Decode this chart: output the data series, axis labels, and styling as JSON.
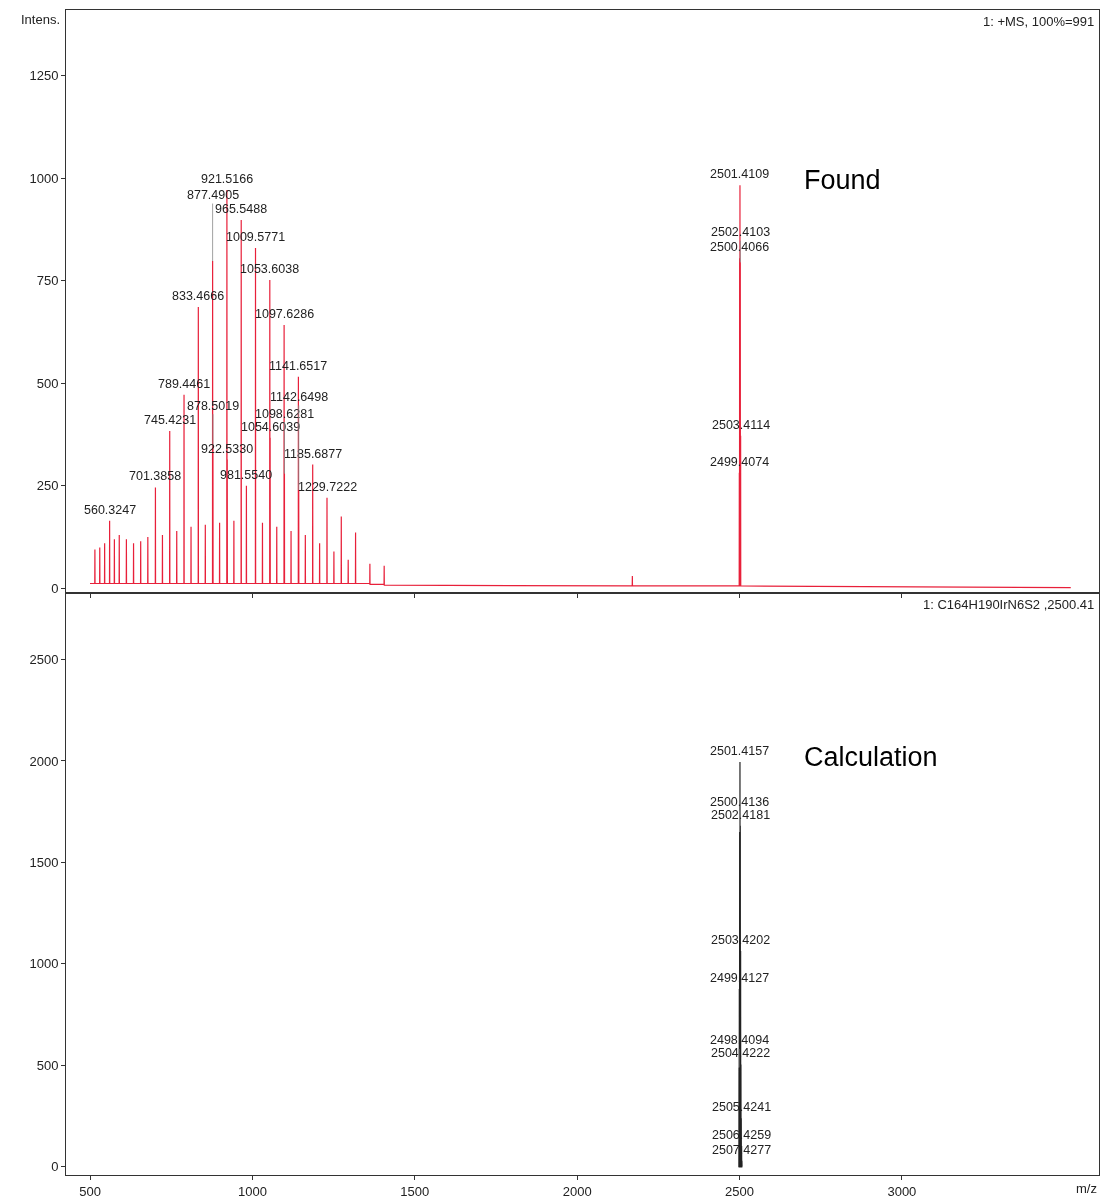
{
  "chart_data": [
    {
      "type": "line",
      "ylabel": "Intens.",
      "xlim": [
        426,
        3607
      ],
      "ylim": [
        -10,
        1410
      ],
      "xticks": [
        500,
        1000,
        1500,
        2000,
        2500,
        3000
      ],
      "yticks": [
        0,
        250,
        500,
        750,
        1000,
        1250
      ],
      "tick_labels": "y",
      "grid": false,
      "marker": "none",
      "series": [
        {
          "color": "#e8203a",
          "x": [
            500,
            514.6,
            515,
            515.4,
            529.6,
            530,
            530.4,
            544.6,
            545,
            545.4,
            559.9247,
            560.3247,
            560.7247,
            574.6,
            575,
            575.4,
            589.6,
            590,
            590.4,
            611.6,
            612,
            612.4,
            633.6,
            634,
            634.4,
            655.6,
            656,
            656.4,
            677.6,
            678,
            678.4,
            700.9858,
            701.3858,
            701.7858,
            722.6,
            723,
            723.4,
            745.0231,
            745.4231,
            745.8231,
            766.6,
            767,
            767.4,
            789.0461,
            789.4461,
            789.8461,
            810.6,
            811,
            811.4,
            833.0666,
            833.4666,
            833.8666,
            854.6,
            855,
            855.4,
            877.0905,
            877.4905,
            877.8905,
            878.1019,
            878.5019,
            878.9019,
            898.6,
            899,
            899.4,
            921.1166,
            921.5166,
            921.9166,
            922.133,
            922.533,
            922.933,
            942.6,
            943,
            943.4,
            965.1488,
            965.5488,
            965.9488,
            981.154,
            981.554,
            981.954,
            1009.1771,
            1009.5771,
            1009.9771,
            1030.6,
            1031,
            1031.4,
            1053.2038,
            1053.6038,
            1054.0038,
            1054.2039,
            1054.6039,
            1055.0039,
            1074.6,
            1075,
            1075.4,
            1097.2286,
            1097.6286,
            1098.0286,
            1098.2281,
            1098.6281,
            1099.0281,
            1118.6,
            1119,
            1119.4,
            1141.2517,
            1141.6517,
            1142.0517,
            1142.2498,
            1142.6498,
            1143.0498,
            1162.6,
            1163,
            1163.4,
            1185.2877,
            1185.6877,
            1186.0877,
            1206.6,
            1207,
            1207.4,
            1229.3222,
            1229.7222,
            1230.1222,
            1250.6,
            1251,
            1251.4,
            1273.3,
            1273.7,
            1274.1,
            1294.6,
            1295,
            1295.4,
            1317.3,
            1317.7,
            1318.1,
            1361.4,
            1361.8,
            1362.2,
            1405.4,
            1405.8,
            1406.2,
            2169.6,
            2170,
            2170.4,
            2499.0074,
            2499.4074,
            2499.8074,
            2500.0066,
            2500.4066,
            2500.8066,
            2501.0109,
            2501.4109,
            2501.8109,
            2502.0103,
            2502.4103,
            2502.8103,
            2503.0114,
            2503.4114,
            2503.8114,
            3520
          ],
          "values": [
            12,
            12,
            95,
            12,
            12,
            100,
            12,
            12,
            110,
            12,
            12,
            165,
            12,
            12,
            120,
            12,
            12,
            130,
            12,
            12,
            120,
            12,
            12,
            110,
            12,
            12,
            115,
            12,
            12,
            125,
            12,
            12,
            246,
            12,
            12,
            130,
            12,
            12,
            384,
            12,
            12,
            140,
            12,
            12,
            472,
            12,
            12,
            150,
            12,
            12,
            686,
            12,
            12,
            155,
            12,
            12,
            798,
            12,
            12,
            343,
            12,
            12,
            160,
            12,
            12,
            971,
            12,
            12,
            314,
            12,
            12,
            165,
            12,
            12,
            898,
            12,
            12,
            250,
            12,
            12,
            830,
            12,
            12,
            160,
            12,
            12,
            752,
            12,
            12,
            367,
            12,
            12,
            150,
            12,
            12,
            642,
            12,
            12,
            280,
            12,
            12,
            140,
            12,
            12,
            516,
            12,
            12,
            240,
            12,
            12,
            130,
            12,
            12,
            302,
            12,
            12,
            110,
            12,
            12,
            221,
            12,
            12,
            90,
            12,
            12,
            175,
            12,
            12,
            70,
            12,
            12,
            136,
            12,
            12,
            60,
            10,
            10,
            55,
            8,
            6,
            30,
            6,
            6,
            282,
            6,
            6,
            805,
            6,
            6,
            983,
            6,
            6,
            795,
            6,
            6,
            372,
            6,
            2
          ]
        }
      ],
      "annotations": [
        "1: +MS, 100%=991",
        "Found",
        {
          "text": "560.3247",
          "x": 560.3247,
          "y": 165
        },
        {
          "text": "701.3858",
          "x": 701.3858,
          "y": 246
        },
        {
          "text": "745.4231",
          "x": 745.4231,
          "y": 384
        },
        {
          "text": "789.4461",
          "x": 789.4461,
          "y": 472
        },
        {
          "text": "833.4666",
          "x": 833.4666,
          "y": 686
        },
        {
          "text": "877.4905",
          "x": 877.4905,
          "y": 798
        },
        {
          "text": "878.5019",
          "x": 878.5019,
          "y": 343
        },
        {
          "text": "921.5166",
          "x": 921.5166,
          "y": 971
        },
        {
          "text": "922.5330",
          "x": 922.533,
          "y": 314
        },
        {
          "text": "965.5488",
          "x": 965.5488,
          "y": 898
        },
        {
          "text": "981.5540",
          "x": 981.554,
          "y": 250
        },
        {
          "text": "1009.5771",
          "x": 1009.5771,
          "y": 830
        },
        {
          "text": "1053.6038",
          "x": 1053.6038,
          "y": 752
        },
        {
          "text": "1054.6039",
          "x": 1054.6039,
          "y": 367
        },
        {
          "text": "1097.6286",
          "x": 1097.6286,
          "y": 642
        },
        {
          "text": "1098.6281",
          "x": 1098.6281,
          "y": 280
        },
        {
          "text": "1141.6517",
          "x": 1141.6517,
          "y": 516
        },
        {
          "text": "1142.6498",
          "x": 1142.6498,
          "y": 240
        },
        {
          "text": "1185.6877",
          "x": 1185.6877,
          "y": 302
        },
        {
          "text": "1229.7222",
          "x": 1229.7222,
          "y": 221
        },
        {
          "text": "2499.4074",
          "x": 2499.4074,
          "y": 282
        },
        {
          "text": "2500.4066",
          "x": 2500.4066,
          "y": 805
        },
        {
          "text": "2501.4109",
          "x": 2501.4109,
          "y": 983
        },
        {
          "text": "2502.4103",
          "x": 2502.4103,
          "y": 795
        },
        {
          "text": "2503.4114",
          "x": 2503.4114,
          "y": 372
        }
      ]
    },
    {
      "type": "line",
      "xlabel": "m/z",
      "xlim": [
        426,
        3607
      ],
      "ylim": [
        -40,
        2830
      ],
      "xticks": [
        500,
        1000,
        1500,
        2000,
        2500,
        3000
      ],
      "yticks": [
        0,
        500,
        1000,
        1500,
        2000,
        2500
      ],
      "grid": false,
      "marker": "none",
      "series": [
        {
          "color": "#222222",
          "x": [
            2498.0094,
            2498.4094,
            2498.8094,
            2499.0127,
            2499.4127,
            2499.8127,
            2500.0136,
            2500.4136,
            2500.8136,
            2501.0157,
            2501.4157,
            2501.8157,
            2502.0181,
            2502.4181,
            2502.8181,
            2503.0202,
            2503.4202,
            2503.8202,
            2504.0222,
            2504.4222,
            2504.8222,
            2505.0241,
            2505.4241,
            2505.8241,
            2506.0259,
            2506.4259,
            2506.8259,
            2507.0277,
            2507.4277,
            2507.8277
          ],
          "values": [
            0,
            490,
            0,
            0,
            877,
            0,
            0,
            1650,
            0,
            0,
            1995,
            0,
            0,
            1681,
            0,
            0,
            1064,
            0,
            0,
            505,
            0,
            0,
            240,
            0,
            0,
            103,
            0,
            0,
            30,
            0
          ]
        }
      ],
      "annotations": [
        "1: C164H190IrN6S2 ,2500.41",
        "Calculation",
        {
          "text": "2498.4094",
          "x": 2498.4094,
          "y": 490
        },
        {
          "text": "2499.4127",
          "x": 2499.4127,
          "y": 877
        },
        {
          "text": "2500.4136",
          "x": 2500.4136,
          "y": 1650
        },
        {
          "text": "2501.4157",
          "x": 2501.4157,
          "y": 1995
        },
        {
          "text": "2502.4181",
          "x": 2502.4181,
          "y": 1681
        },
        {
          "text": "2503.4202",
          "x": 2503.4202,
          "y": 1064
        },
        {
          "text": "2504.4222",
          "x": 2504.4222,
          "y": 505
        },
        {
          "text": "2505.4241",
          "x": 2505.4241,
          "y": 240
        },
        {
          "text": "2506.4259",
          "x": 2506.4259,
          "y": 103
        },
        {
          "text": "2507.4277",
          "x": 2507.4277,
          "y": 30
        }
      ]
    }
  ]
}
